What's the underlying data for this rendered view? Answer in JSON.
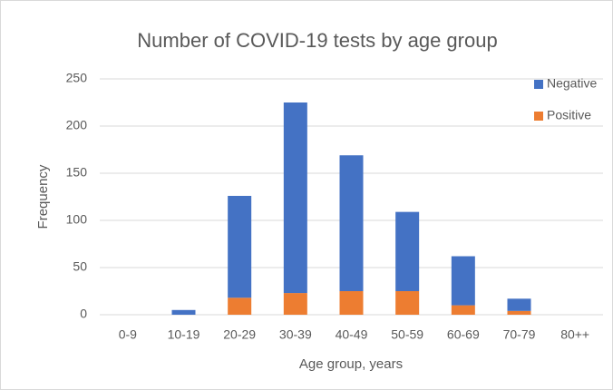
{
  "chart_data": {
    "type": "stacked_bar",
    "title": "Number of COVID-19 tests by age group",
    "x_label": "Age group, years",
    "y_label": "Frequency",
    "categories": [
      "0-9",
      "10-19",
      "20-29",
      "30-39",
      "40-49",
      "50-59",
      "60-69",
      "70-79",
      "80++"
    ],
    "series": [
      {
        "name": "Positive",
        "color": "#ed7d31",
        "values": [
          0,
          0,
          18,
          23,
          25,
          25,
          10,
          4,
          0
        ]
      },
      {
        "name": "Negative",
        "color": "#4472c4",
        "values": [
          0,
          5,
          108,
          202,
          144,
          84,
          52,
          13,
          0
        ]
      }
    ],
    "ylim": [
      0,
      250
    ],
    "yticks": [
      0,
      50,
      100,
      150,
      200,
      250
    ],
    "grid": true,
    "legend": "upper right"
  }
}
